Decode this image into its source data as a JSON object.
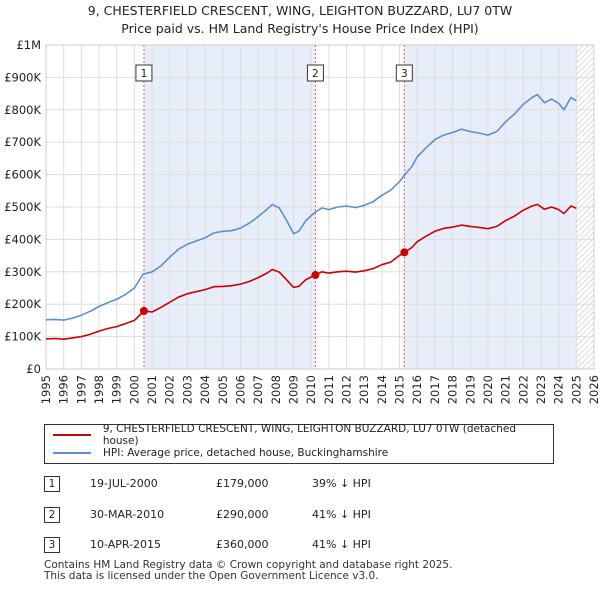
{
  "title_line1": "9, CHESTERFIELD CRESCENT, WING, LEIGHTON BUZZARD, LU7 0TW",
  "title_line2": "Price paid vs. HM Land Registry's House Price Index (HPI)",
  "chart_data": {
    "type": "line",
    "x_range": [
      1995,
      2026
    ],
    "ylim": [
      0,
      1000000
    ],
    "y_ticks": [
      {
        "value": 0,
        "label": "£0"
      },
      {
        "value": 100000,
        "label": "£100K"
      },
      {
        "value": 200000,
        "label": "£200K"
      },
      {
        "value": 300000,
        "label": "£300K"
      },
      {
        "value": 400000,
        "label": "£400K"
      },
      {
        "value": 500000,
        "label": "£500K"
      },
      {
        "value": 600000,
        "label": "£600K"
      },
      {
        "value": 700000,
        "label": "£700K"
      },
      {
        "value": 800000,
        "label": "£800K"
      },
      {
        "value": 900000,
        "label": "£900K"
      },
      {
        "value": 1000000,
        "label": "£1M"
      }
    ],
    "x_ticks": [
      "1995",
      "1996",
      "1997",
      "1998",
      "1999",
      "2000",
      "2001",
      "2002",
      "2003",
      "2004",
      "2005",
      "2006",
      "2007",
      "2008",
      "2009",
      "2010",
      "2011",
      "2012",
      "2013",
      "2014",
      "2015",
      "2016",
      "2017",
      "2018",
      "2019",
      "2020",
      "2021",
      "2022",
      "2023",
      "2024",
      "2025",
      "2026"
    ],
    "shaded_periods": [
      {
        "from": 2000.54,
        "to": 2010.24
      },
      {
        "from": 2015.27,
        "to": 2025.0
      }
    ],
    "forecast_hatch_from": 2025.0,
    "series": [
      {
        "name": "9, CHESTERFIELD CRESCENT, WING, LEIGHTON BUZZARD, LU7 0TW (detached house)",
        "color": "#cc0000",
        "points": [
          [
            1995.0,
            93000
          ],
          [
            1995.5,
            94000
          ],
          [
            1996.0,
            92000
          ],
          [
            1996.5,
            96000
          ],
          [
            1997.0,
            100000
          ],
          [
            1997.5,
            107000
          ],
          [
            1998.0,
            117000
          ],
          [
            1998.5,
            125000
          ],
          [
            1999.0,
            131000
          ],
          [
            1999.5,
            140000
          ],
          [
            2000.0,
            150000
          ],
          [
            2000.54,
            179000
          ],
          [
            2001.0,
            176000
          ],
          [
            2001.5,
            190000
          ],
          [
            2002.0,
            206000
          ],
          [
            2002.5,
            222000
          ],
          [
            2003.0,
            232000
          ],
          [
            2003.5,
            239000
          ],
          [
            2004.0,
            245000
          ],
          [
            2004.5,
            254000
          ],
          [
            2005.0,
            255000
          ],
          [
            2005.5,
            257000
          ],
          [
            2006.0,
            262000
          ],
          [
            2006.5,
            270000
          ],
          [
            2007.0,
            282000
          ],
          [
            2007.5,
            296000
          ],
          [
            2007.8,
            307000
          ],
          [
            2008.2,
            299000
          ],
          [
            2008.6,
            276000
          ],
          [
            2009.0,
            252000
          ],
          [
            2009.3,
            255000
          ],
          [
            2009.7,
            276000
          ],
          [
            2010.24,
            290000
          ],
          [
            2010.6,
            300000
          ],
          [
            2011.0,
            296000
          ],
          [
            2011.5,
            300000
          ],
          [
            2012.0,
            302000
          ],
          [
            2012.5,
            299000
          ],
          [
            2013.0,
            303000
          ],
          [
            2013.5,
            310000
          ],
          [
            2014.0,
            322000
          ],
          [
            2014.5,
            330000
          ],
          [
            2014.9,
            347000
          ],
          [
            2015.27,
            360000
          ],
          [
            2015.7,
            375000
          ],
          [
            2016.0,
            393000
          ],
          [
            2016.5,
            410000
          ],
          [
            2017.0,
            425000
          ],
          [
            2017.5,
            434000
          ],
          [
            2018.0,
            438000
          ],
          [
            2018.5,
            444000
          ],
          [
            2019.0,
            440000
          ],
          [
            2019.5,
            437000
          ],
          [
            2020.0,
            433000
          ],
          [
            2020.5,
            440000
          ],
          [
            2021.0,
            458000
          ],
          [
            2021.5,
            472000
          ],
          [
            2022.0,
            490000
          ],
          [
            2022.5,
            503000
          ],
          [
            2022.8,
            508000
          ],
          [
            2023.2,
            493000
          ],
          [
            2023.6,
            500000
          ],
          [
            2024.0,
            492000
          ],
          [
            2024.3,
            480000
          ],
          [
            2024.7,
            503000
          ],
          [
            2025.0,
            496000
          ]
        ]
      },
      {
        "name": "HPI: Average price, detached house, Buckinghamshire",
        "color": "#5b8fd1",
        "points": [
          [
            1995.0,
            152000
          ],
          [
            1995.5,
            153000
          ],
          [
            1996.0,
            151000
          ],
          [
            1996.5,
            157000
          ],
          [
            1997.0,
            166000
          ],
          [
            1997.5,
            178000
          ],
          [
            1998.0,
            193000
          ],
          [
            1998.5,
            205000
          ],
          [
            1999.0,
            215000
          ],
          [
            1999.5,
            230000
          ],
          [
            2000.0,
            250000
          ],
          [
            2000.5,
            293000
          ],
          [
            2001.0,
            300000
          ],
          [
            2001.5,
            318000
          ],
          [
            2002.0,
            345000
          ],
          [
            2002.5,
            370000
          ],
          [
            2003.0,
            385000
          ],
          [
            2003.5,
            395000
          ],
          [
            2004.0,
            405000
          ],
          [
            2004.5,
            420000
          ],
          [
            2005.0,
            425000
          ],
          [
            2005.5,
            427000
          ],
          [
            2006.0,
            435000
          ],
          [
            2006.5,
            450000
          ],
          [
            2007.0,
            470000
          ],
          [
            2007.5,
            493000
          ],
          [
            2007.8,
            508000
          ],
          [
            2008.2,
            497000
          ],
          [
            2008.6,
            460000
          ],
          [
            2009.0,
            418000
          ],
          [
            2009.3,
            425000
          ],
          [
            2009.7,
            458000
          ],
          [
            2010.2,
            483000
          ],
          [
            2010.6,
            497000
          ],
          [
            2011.0,
            492000
          ],
          [
            2011.5,
            500000
          ],
          [
            2012.0,
            503000
          ],
          [
            2012.5,
            498000
          ],
          [
            2013.0,
            505000
          ],
          [
            2013.5,
            516000
          ],
          [
            2014.0,
            536000
          ],
          [
            2014.5,
            552000
          ],
          [
            2015.0,
            578000
          ],
          [
            2015.3,
            600000
          ],
          [
            2015.7,
            625000
          ],
          [
            2016.0,
            655000
          ],
          [
            2016.5,
            683000
          ],
          [
            2017.0,
            708000
          ],
          [
            2017.5,
            722000
          ],
          [
            2018.0,
            730000
          ],
          [
            2018.5,
            740000
          ],
          [
            2019.0,
            733000
          ],
          [
            2019.5,
            728000
          ],
          [
            2020.0,
            722000
          ],
          [
            2020.5,
            733000
          ],
          [
            2021.0,
            763000
          ],
          [
            2021.5,
            787000
          ],
          [
            2022.0,
            817000
          ],
          [
            2022.5,
            838000
          ],
          [
            2022.8,
            847000
          ],
          [
            2023.2,
            822000
          ],
          [
            2023.6,
            833000
          ],
          [
            2024.0,
            820000
          ],
          [
            2024.3,
            800000
          ],
          [
            2024.7,
            838000
          ],
          [
            2025.0,
            828000
          ]
        ]
      }
    ],
    "sale_markers": [
      {
        "label": "1",
        "x": 2000.54,
        "price": 179000
      },
      {
        "label": "2",
        "x": 2010.24,
        "price": 290000
      },
      {
        "label": "3",
        "x": 2015.27,
        "price": 360000
      }
    ]
  },
  "legend": {
    "property": "9, CHESTERFIELD CRESCENT, WING, LEIGHTON BUZZARD, LU7 0TW (detached house)",
    "hpi": "HPI: Average price, detached house, Buckinghamshire",
    "property_color": "#cc0000",
    "hpi_color": "#5b8fd1"
  },
  "sales": [
    {
      "num": "1",
      "date": "19-JUL-2000",
      "price": "£179,000",
      "hpi": "39% ↓ HPI"
    },
    {
      "num": "2",
      "date": "30-MAR-2010",
      "price": "£290,000",
      "hpi": "41% ↓ HPI"
    },
    {
      "num": "3",
      "date": "10-APR-2015",
      "price": "£360,000",
      "hpi": "41% ↓ HPI"
    }
  ],
  "footer": {
    "line1": "Contains HM Land Registry data © Crown copyright and database right 2025.",
    "line2": "This data is licensed under the Open Government Licence v3.0."
  }
}
